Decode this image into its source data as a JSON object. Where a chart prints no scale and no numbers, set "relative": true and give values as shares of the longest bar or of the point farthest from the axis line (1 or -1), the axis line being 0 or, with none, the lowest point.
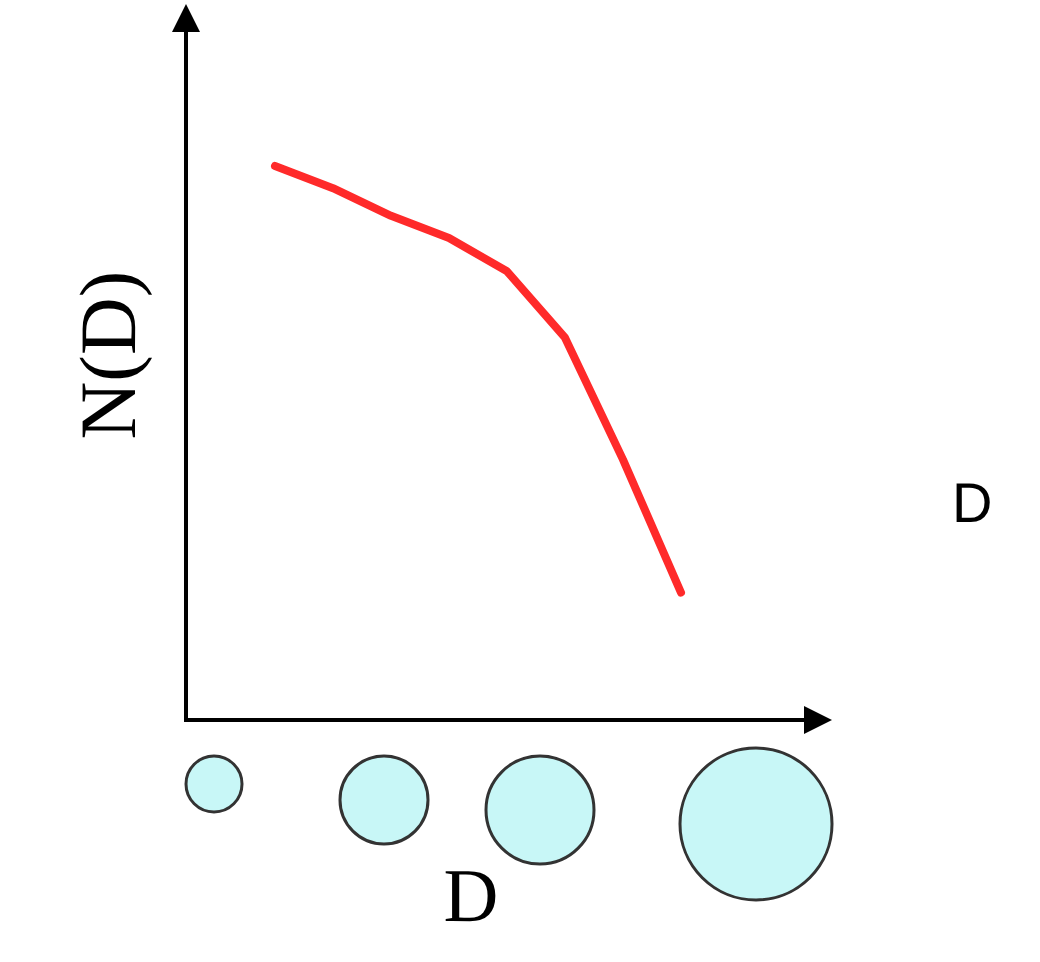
{
  "chart_data": {
    "type": "line",
    "relative": true,
    "xlabel": "D",
    "ylabel": "N(D)",
    "color": "#ff2a2a",
    "categories": [
      null,
      null,
      null,
      null,
      null,
      null,
      null,
      null
    ],
    "values": [
      1,
      0.96,
      0.91,
      0.87,
      0.81,
      0.69,
      0.47,
      0.23
    ],
    "annotations": [
      "D"
    ]
  }
}
